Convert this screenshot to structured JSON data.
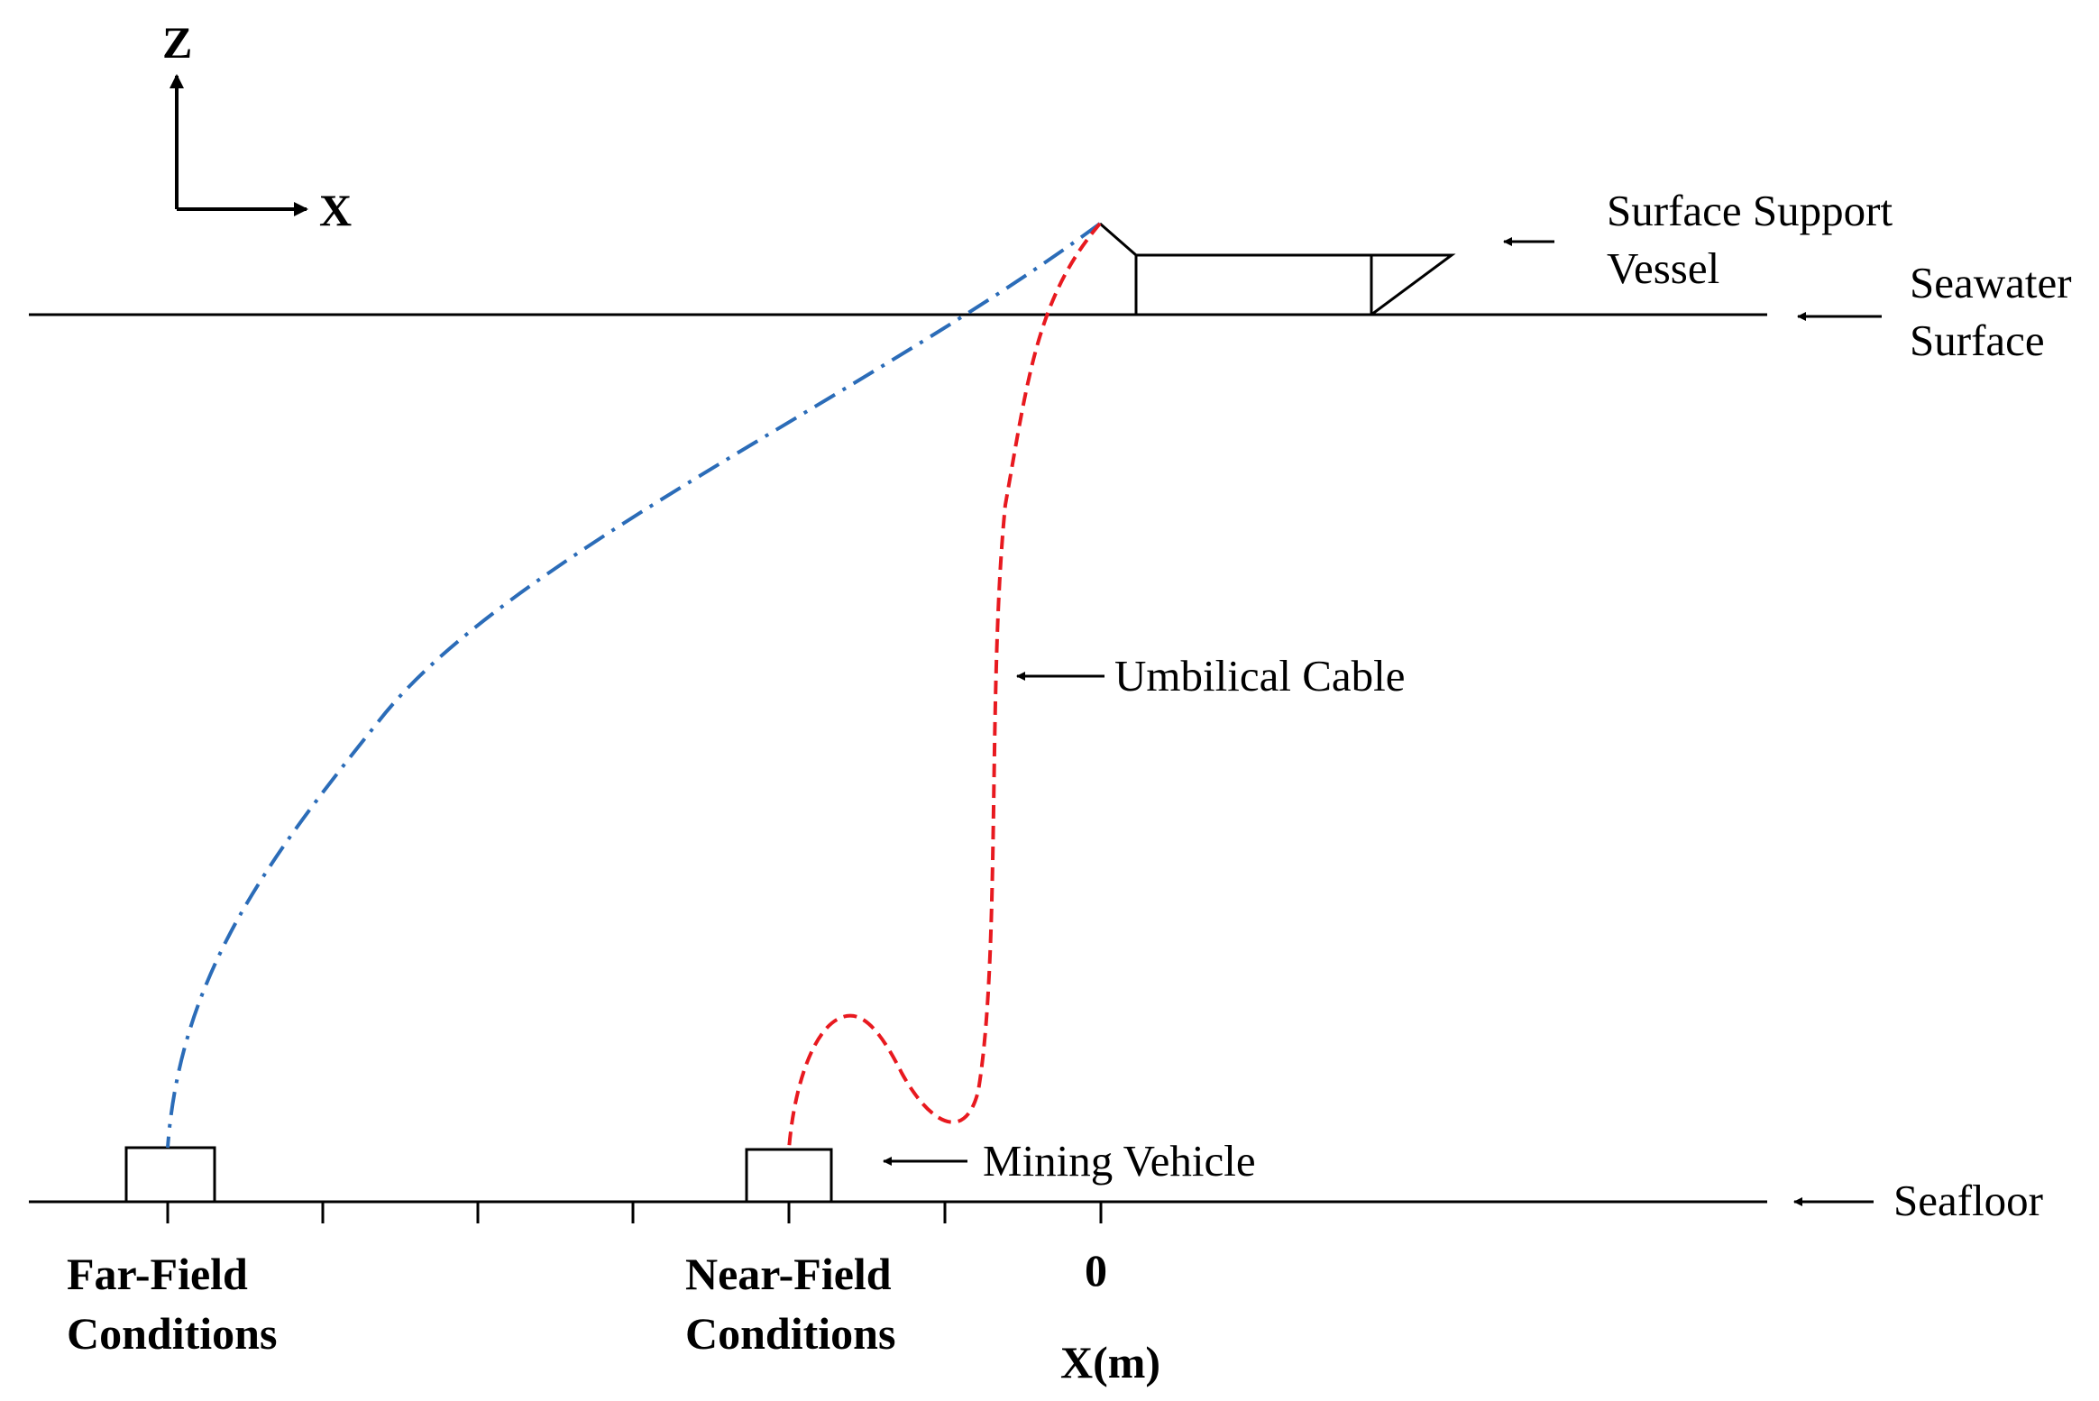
{
  "axes": {
    "z_label": "Z",
    "x_label": "X",
    "x_axis_title": "X(m)",
    "zero_tick_label": "0"
  },
  "labels": {
    "vessel_line1": "Surface Support",
    "vessel_line2": "Vessel",
    "surface_line1": "Seawater",
    "surface_line2": "Surface",
    "cable": "Umbilical Cable",
    "vehicle": "Mining Vehicle",
    "seafloor": "Seafloor",
    "far_line1": "Far-Field",
    "far_line2": "Conditions",
    "near_line1": "Near-Field",
    "near_line2": "Conditions"
  },
  "colors": {
    "ink": "#000000",
    "far_field_cable": "#2b6cb8",
    "near_field_cable": "#e8191f",
    "background": "#ffffff"
  },
  "icons": {
    "arrow": "left-pointing-arrow",
    "axis_arrow": "triangle-arrowhead"
  }
}
